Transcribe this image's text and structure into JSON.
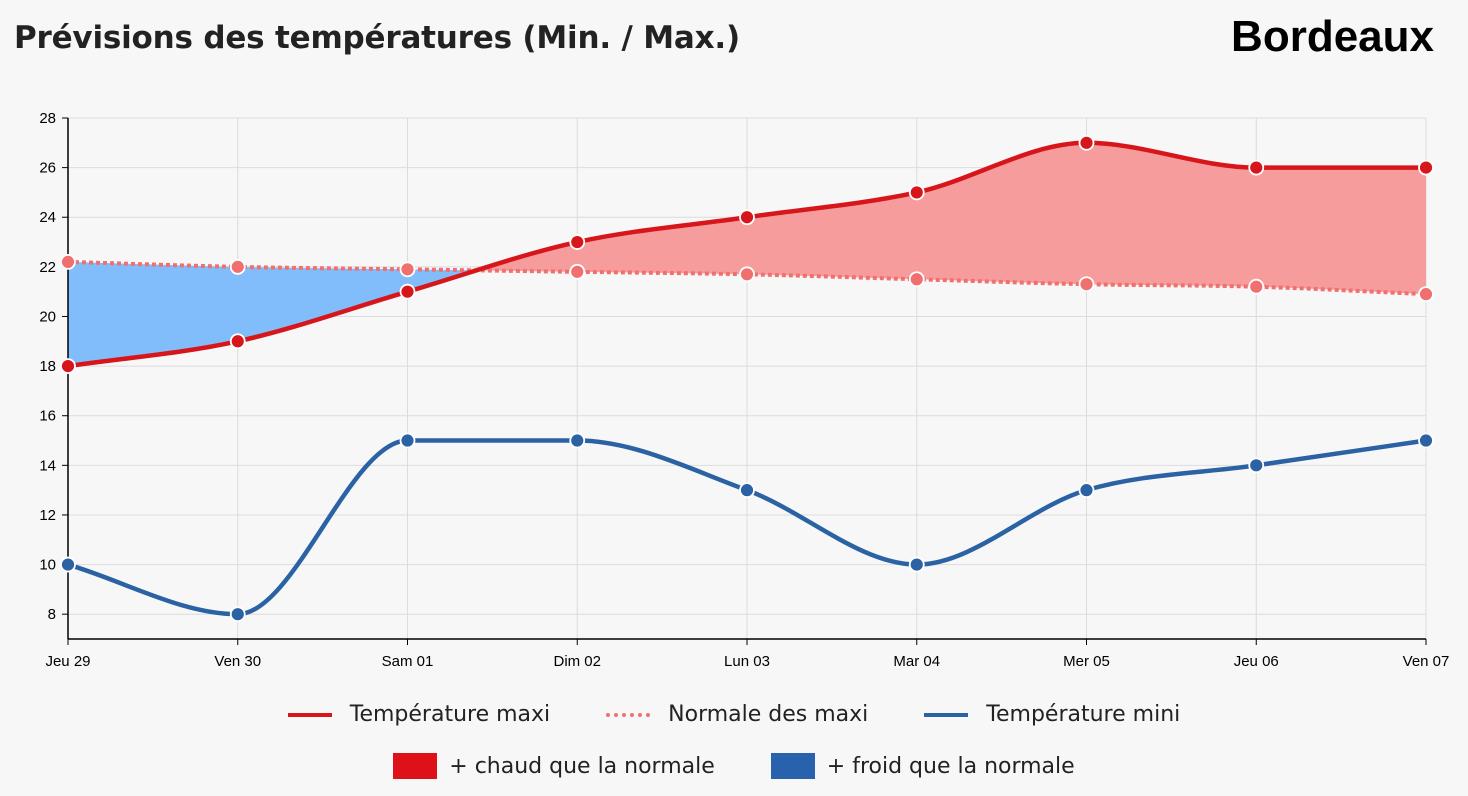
{
  "header": {
    "title": "Prévisions des températures (Min. / Max.)",
    "city": "Bordeaux"
  },
  "colors": {
    "max_line": "#d7161b",
    "normal_line": "#f07070",
    "min_line": "#2a62a3",
    "warmer_fill": "#f79c9c",
    "colder_fill": "#81bdfa",
    "warmer_swatch": "#dd1117",
    "colder_swatch": "#2862ac"
  },
  "legend": {
    "max_label": "Température maxi",
    "normal_label": "Normale des maxi",
    "min_label": "Température mini",
    "warmer_label": "+ chaud que la normale",
    "colder_label": "+ froid que la normale"
  },
  "chart_data": {
    "type": "line",
    "categories": [
      "Jeu 29",
      "Ven 30",
      "Sam 01",
      "Dim 02",
      "Lun 03",
      "Mar 04",
      "Mer 05",
      "Jeu 06",
      "Ven 07"
    ],
    "series": [
      {
        "name": "Température maxi",
        "values": [
          18,
          19,
          21,
          23,
          24,
          25,
          27,
          26,
          26
        ]
      },
      {
        "name": "Normale des maxi",
        "values": [
          22.2,
          22.0,
          21.9,
          21.8,
          21.7,
          21.5,
          21.3,
          21.2,
          20.9
        ]
      },
      {
        "name": "Température mini",
        "values": [
          10,
          8,
          15,
          15,
          13,
          10,
          13,
          14,
          15
        ]
      }
    ],
    "yticks": [
      8,
      10,
      12,
      14,
      16,
      18,
      20,
      22,
      24,
      26,
      28
    ],
    "ylim": [
      7,
      28
    ],
    "grid": true,
    "legend_position": "bottom-center"
  }
}
